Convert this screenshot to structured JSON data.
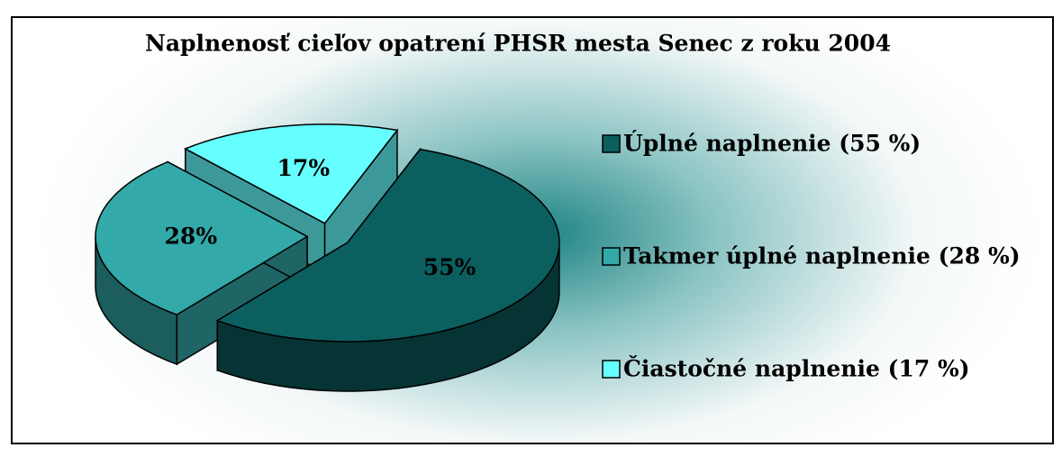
{
  "chart_data": {
    "type": "pie",
    "title": "Naplnenosť cieľov opatrení PHSR mesta Senec z roku 2004",
    "categories": [
      "Úplné naplnenie (55 %)",
      "Takmer úplné naplnenie (28 %)",
      "Čiastočné naplnenie (17 %)"
    ],
    "values": [
      55,
      28,
      17
    ],
    "value_labels": [
      "55%",
      "28%",
      "17%"
    ],
    "colors": [
      "#0b5f5f",
      "#33a9a9",
      "#66ffff"
    ],
    "legend": "right"
  }
}
